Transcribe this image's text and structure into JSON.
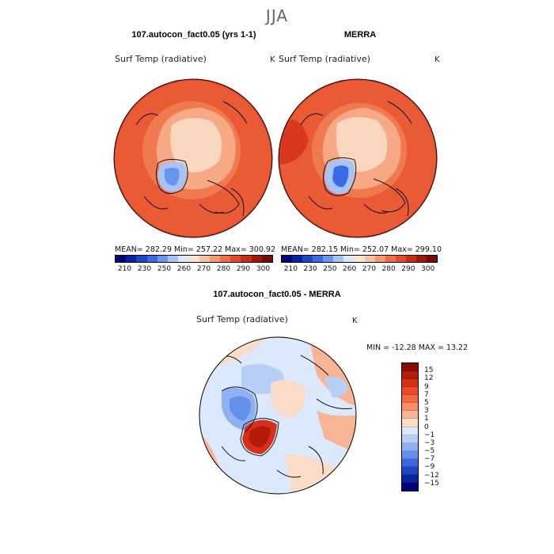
{
  "season": "JJA",
  "panels": {
    "model": {
      "title": "107.autocon_fact0.05 (yrs 1-1)",
      "variable": "Surf Temp (radiative)",
      "unit": "K",
      "stats": "MEAN= 282.29   Min= 257.22   Max= 300.92"
    },
    "obs": {
      "title": "MERRA",
      "variable": "Surf Temp (radiative)",
      "unit": "K",
      "stats": "MEAN= 282.15   Min= 252.07   Max= 299.10"
    },
    "diff": {
      "title": "107.autocon_fact0.05 - MERRA",
      "variable": "Surf Temp (radiative)",
      "unit": "K",
      "minmax": "MIN = -12.28  MAX =  13.22"
    }
  },
  "abs_colorbar": {
    "labels": [
      "210",
      "230",
      "250",
      "260",
      "270",
      "280",
      "290",
      "300"
    ],
    "colors": [
      "#00007f",
      "#0a1fa8",
      "#1e44cc",
      "#3a6be6",
      "#6a94f2",
      "#a8c4f7",
      "#dce8fb",
      "#fbe3d2",
      "#f9c2a2",
      "#f59a74",
      "#ef6e47",
      "#e5482a",
      "#cc2a14",
      "#a3150a",
      "#7a0a05"
    ]
  },
  "diff_colorbar": {
    "labels": [
      "15",
      "12",
      "9",
      "7",
      "5",
      "3",
      "1",
      "0",
      "−1",
      "−3",
      "−5",
      "−7",
      "−9",
      "−12",
      "−15"
    ],
    "colors": [
      "#8a0b06",
      "#b51b0d",
      "#d6301a",
      "#ea4a2a",
      "#f26a44",
      "#f58f68",
      "#f8b595",
      "#fbdcc8",
      "#dbe8fb",
      "#b7cff7",
      "#8fb0f1",
      "#6590ea",
      "#3d69dc",
      "#1f44c4",
      "#0b259f",
      "#00007a"
    ]
  },
  "map_colors": {
    "warm_dark": "#d9381e",
    "warm": "#ea5a34",
    "warm_light": "#f59a74",
    "arctic": "#fbd7bf",
    "greenland": "#6a94f2",
    "diff_ocean": "#dce8fb",
    "diff_warm": "#f8b595",
    "diff_cold": "#6590ea"
  },
  "icons": [
    "polar-map"
  ]
}
